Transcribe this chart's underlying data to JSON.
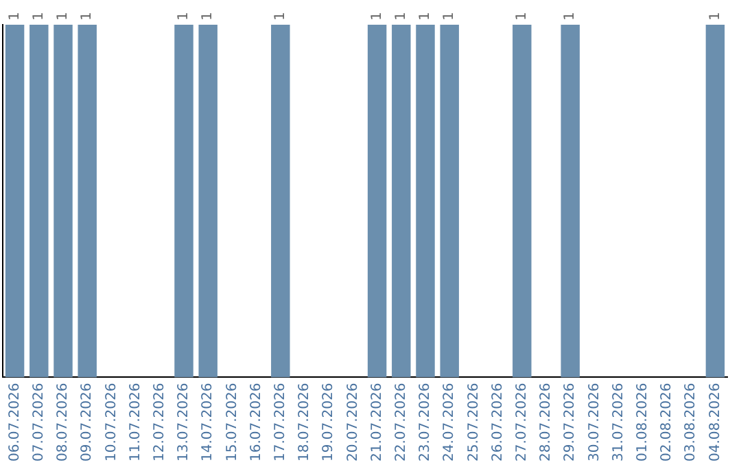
{
  "chart_data": {
    "type": "bar",
    "categories": [
      "06.07.2026",
      "07.07.2026",
      "08.07.2026",
      "09.07.2026",
      "10.07.2026",
      "11.07.2026",
      "12.07.2026",
      "13.07.2026",
      "14.07.2026",
      "15.07.2026",
      "16.07.2026",
      "17.07.2026",
      "18.07.2026",
      "19.07.2026",
      "20.07.2026",
      "21.07.2026",
      "22.07.2026",
      "23.07.2026",
      "24.07.2026",
      "25.07.2026",
      "26.07.2026",
      "27.07.2026",
      "28.07.2026",
      "29.07.2026",
      "30.07.2026",
      "31.07.2026",
      "01.08.2026",
      "02.08.2026",
      "03.08.2026",
      "04.08.2026"
    ],
    "values": [
      1,
      1,
      1,
      1,
      null,
      null,
      null,
      1,
      1,
      null,
      null,
      1,
      null,
      null,
      null,
      1,
      1,
      1,
      1,
      null,
      null,
      1,
      null,
      1,
      null,
      null,
      null,
      null,
      null,
      1
    ],
    "color": "#6b8fae",
    "data_labels": true,
    "grid": false,
    "legend": false,
    "tick_labels": "x"
  }
}
